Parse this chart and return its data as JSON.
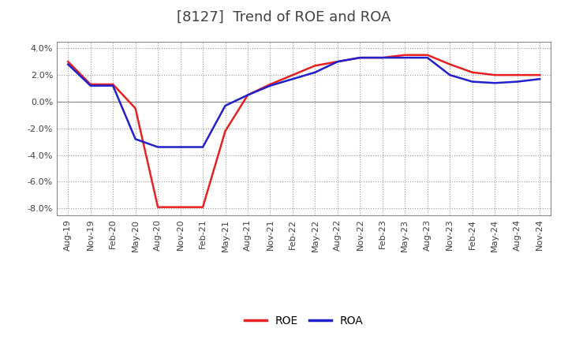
{
  "title": "[8127]  Trend of ROE and ROA",
  "ylim": [
    -0.085,
    0.045
  ],
  "yticks": [
    -0.08,
    -0.06,
    -0.04,
    -0.02,
    0.0,
    0.02,
    0.04
  ],
  "x_labels": [
    "Aug-19",
    "Nov-19",
    "Feb-20",
    "May-20",
    "Aug-20",
    "Nov-20",
    "Feb-21",
    "May-21",
    "Aug-21",
    "Nov-21",
    "Feb-22",
    "May-22",
    "Aug-22",
    "Nov-22",
    "Feb-23",
    "May-23",
    "Aug-23",
    "Nov-23",
    "Feb-24",
    "May-24",
    "Aug-24",
    "Nov-24"
  ],
  "ROE": [
    0.03,
    0.013,
    0.013,
    -0.005,
    -0.079,
    -0.079,
    -0.079,
    -0.022,
    0.005,
    0.013,
    0.02,
    0.027,
    0.03,
    0.033,
    0.033,
    0.035,
    0.035,
    0.028,
    0.022,
    0.02,
    0.02,
    0.02
  ],
  "ROA": [
    0.028,
    0.012,
    0.012,
    -0.028,
    -0.034,
    -0.034,
    -0.034,
    -0.003,
    0.005,
    0.012,
    0.017,
    0.022,
    0.03,
    0.033,
    0.033,
    0.033,
    0.033,
    0.02,
    0.015,
    0.014,
    0.015,
    0.017
  ],
  "ROE_color": "#e82020",
  "ROA_color": "#2020cc",
  "background_color": "#ffffff",
  "plot_bg_color": "#ffffff",
  "grid_color": "#999999",
  "title_color": "#404040",
  "title_fontsize": 13,
  "tick_fontsize": 8,
  "legend_fontsize": 10,
  "linewidth": 1.8
}
